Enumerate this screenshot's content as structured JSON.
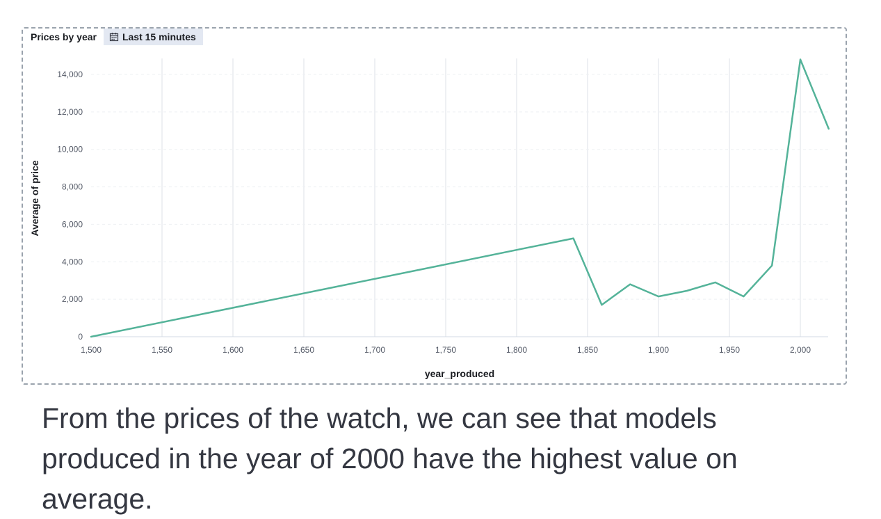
{
  "panel": {
    "title": "Prices by year",
    "time_range": "Last 15 minutes",
    "time_icon": "calendar-icon"
  },
  "caption": "From the prices of the watch, we can see that models produced in the year of 2000 have the highest value on average.",
  "colors": {
    "line": "#54b399",
    "grid_vertical": "#eef0f3",
    "grid_horizontal": "#eef0f3",
    "baseline": "#d3dae6",
    "text": "#343741"
  },
  "chart_data": {
    "type": "line",
    "xlabel": "year_produced",
    "ylabel": "Average of price",
    "xlim": [
      1500,
      2020
    ],
    "ylim": [
      0,
      15000
    ],
    "x_ticks": [
      1500,
      1550,
      1600,
      1650,
      1700,
      1750,
      1800,
      1850,
      1900,
      1950,
      2000
    ],
    "x_tick_labels": [
      "1,500",
      "1,550",
      "1,600",
      "1,650",
      "1,700",
      "1,750",
      "1,800",
      "1,850",
      "1,900",
      "1,950",
      "2,000"
    ],
    "y_ticks": [
      0,
      2000,
      4000,
      6000,
      8000,
      10000,
      12000,
      14000
    ],
    "y_tick_labels": [
      "0",
      "2,000",
      "4,000",
      "6,000",
      "8,000",
      "10,000",
      "12,000",
      "14,000"
    ],
    "grid": true,
    "legend": "none",
    "series": [
      {
        "x": [
          1500,
          1840,
          1860,
          1880,
          1900,
          1920,
          1940,
          1960,
          1980,
          2000,
          2020
        ],
        "y": [
          0,
          5250,
          1700,
          2800,
          2150,
          2450,
          2900,
          2150,
          3800,
          14800,
          11100
        ]
      }
    ]
  }
}
